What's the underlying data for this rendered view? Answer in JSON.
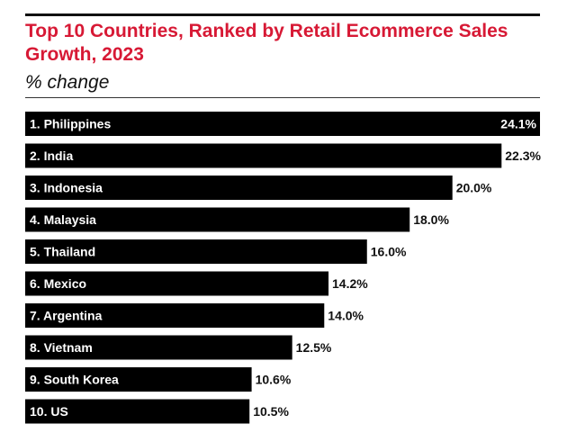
{
  "chart_data": {
    "type": "bar",
    "orientation": "horizontal",
    "title": "Top 10 Countries, Ranked by Retail Ecommerce Sales Growth, 2023",
    "subtitle": "% change",
    "categories": [
      "1. Philippines",
      "2. India",
      "3. Indonesia",
      "4. Malaysia",
      "5. Thailand",
      "6. Mexico",
      "7. Argentina",
      "8. Vietnam",
      "9. South Korea",
      "10. US"
    ],
    "values": [
      24.1,
      22.3,
      20.0,
      18.0,
      16.0,
      14.2,
      14.0,
      12.5,
      10.6,
      10.5
    ],
    "value_labels": [
      "24.1%",
      "22.3%",
      "20.0%",
      "18.0%",
      "16.0%",
      "14.2%",
      "14.0%",
      "12.5%",
      "10.6%",
      "10.5%"
    ],
    "bar_color": "#000000",
    "title_color": "#d71935",
    "grid": false,
    "legend": "none"
  }
}
